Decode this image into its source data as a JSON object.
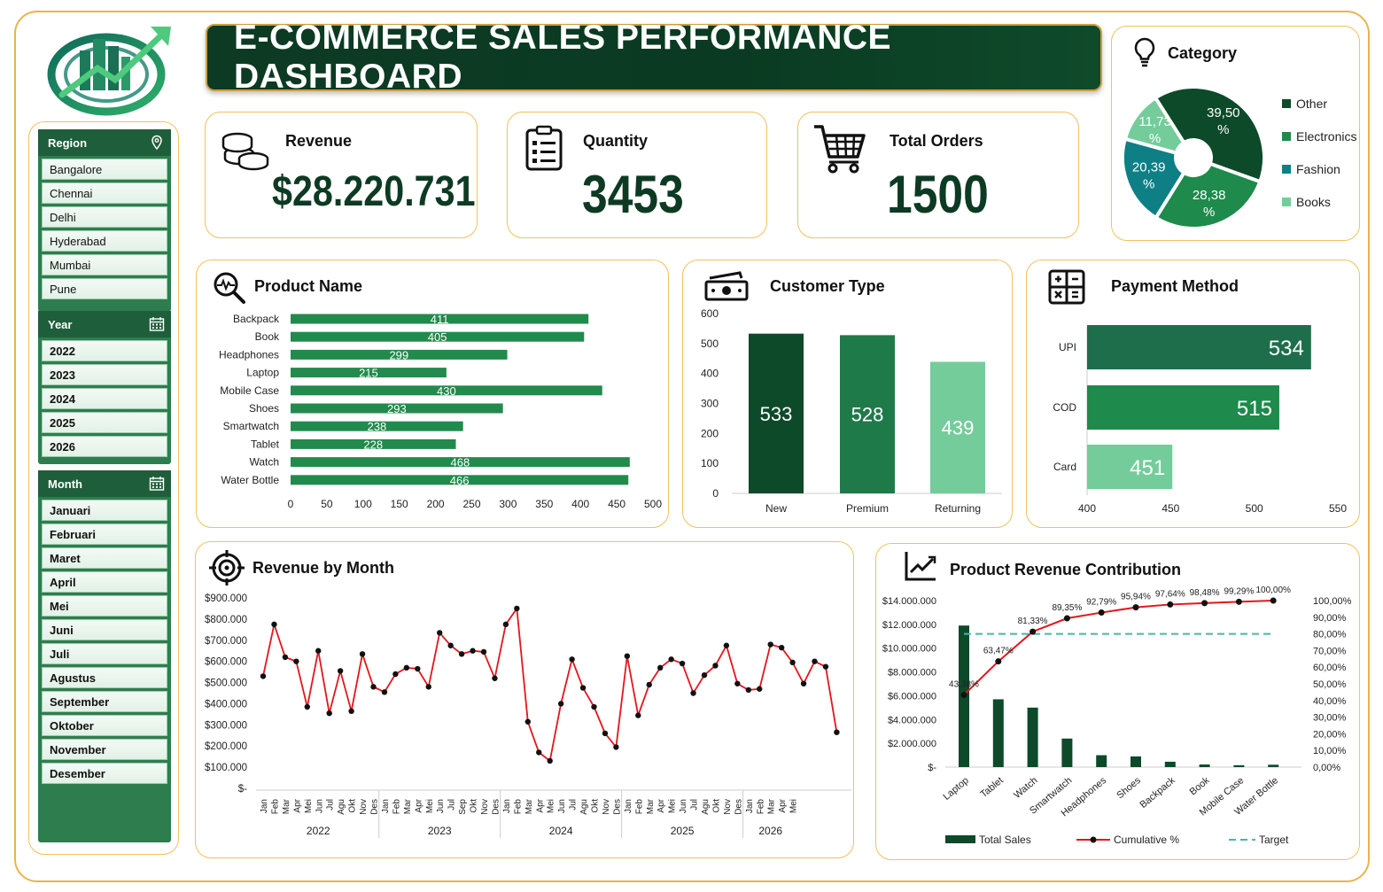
{
  "title": "E-COMMERCE SALES PERFORMANCE DASHBOARD",
  "colors": {
    "dark_green": "#0d4a2a",
    "mid_green": "#1e8a4c",
    "teal": "#0f7f86",
    "light_green": "#74cc9a",
    "red": "#e5151b",
    "target": "#46b8a8",
    "border": "#f0c25c"
  },
  "slicers": {
    "region": {
      "label": "Region",
      "icon": "map-pin-icon",
      "items": [
        "Bangalore",
        "Chennai",
        "Delhi",
        "Hyderabad",
        "Mumbai",
        "Pune"
      ]
    },
    "year": {
      "label": "Year",
      "icon": "calendar-icon",
      "items": [
        "2022",
        "2023",
        "2024",
        "2025",
        "2026"
      ]
    },
    "month": {
      "label": "Month",
      "icon": "calendar-icon",
      "items": [
        "Januari",
        "Februari",
        "Maret",
        "April",
        "Mei",
        "Juni",
        "Juli",
        "Agustus",
        "September",
        "Oktober",
        "November",
        "Desember"
      ]
    }
  },
  "kpis": {
    "revenue": {
      "label": "Revenue",
      "value": "$28.220.731",
      "icon": "coins-icon"
    },
    "quantity": {
      "label": "Quantity",
      "value": "3453",
      "icon": "clipboard-icon"
    },
    "orders": {
      "label": "Total Orders",
      "value": "1500",
      "icon": "shopping-cart-icon"
    }
  },
  "chart_data": [
    {
      "id": "category",
      "type": "pie",
      "title": "Category",
      "icon": "lightbulb-icon",
      "donut": true,
      "slices": [
        {
          "name": "Other",
          "value": 39.5,
          "label": "39,50 %"
        },
        {
          "name": "Electronics",
          "value": 28.38,
          "label": "28,38 %"
        },
        {
          "name": "Fashion",
          "value": 20.39,
          "label": "20,39 %"
        },
        {
          "name": "Books",
          "value": 11.73,
          "label": "11,73 %"
        }
      ],
      "legend": "right"
    },
    {
      "id": "product_name",
      "type": "bar",
      "orientation": "horizontal",
      "title": "Product Name",
      "icon": "magnifier-pulse-icon",
      "categories": [
        "Backpack",
        "Book",
        "Headphones",
        "Laptop",
        "Mobile Case",
        "Shoes",
        "Smartwatch",
        "Tablet",
        "Watch",
        "Water Bottle"
      ],
      "values": [
        411,
        405,
        299,
        215,
        430,
        293,
        238,
        228,
        468,
        466
      ],
      "xlim": [
        0,
        500
      ],
      "xticks": [
        "0",
        "50",
        "100",
        "150",
        "200",
        "250",
        "300",
        "350",
        "400",
        "450",
        "500"
      ]
    },
    {
      "id": "customer_type",
      "type": "bar",
      "title": "Customer Type",
      "icon": "cash-icon",
      "categories": [
        "New",
        "Premium",
        "Returning"
      ],
      "values": [
        533,
        528,
        439
      ],
      "ylim": [
        0,
        600
      ],
      "yticks": [
        "0",
        "100",
        "200",
        "300",
        "400",
        "500",
        "600"
      ]
    },
    {
      "id": "payment_method",
      "type": "bar",
      "orientation": "horizontal",
      "title": "Payment Method",
      "icon": "calculator-icon",
      "categories": [
        "UPI",
        "COD",
        "Card"
      ],
      "values": [
        534,
        515,
        451
      ],
      "xlim": [
        400,
        550
      ],
      "xticks": [
        "400",
        "450",
        "500",
        "550"
      ]
    },
    {
      "id": "revenue_by_month",
      "type": "line",
      "title": "Revenue by Month",
      "icon": "target-icon",
      "ylim": [
        0,
        900000
      ],
      "yticks": [
        "$-",
        "$100.000",
        "$200.000",
        "$300.000",
        "$400.000",
        "$500.000",
        "$600.000",
        "$700.000",
        "$800.000",
        "$900.000"
      ],
      "years": [
        {
          "label": "2022",
          "months": [
            "Jan",
            "Feb",
            "Mar",
            "Apr",
            "Mei",
            "Jun",
            "Jul",
            "Agu",
            "Okt",
            "Nov",
            "Des"
          ]
        },
        {
          "label": "2023",
          "months": [
            "Jan",
            "Feb",
            "Mar",
            "Apr",
            "Mei",
            "Jun",
            "Jul",
            "Sep",
            "Okt",
            "Nov",
            "Des"
          ]
        },
        {
          "label": "2024",
          "months": [
            "Jan",
            "Feb",
            "Mar",
            "Apr",
            "Mei",
            "Jun",
            "Jul",
            "Agu",
            "Okt",
            "Nov",
            "Des"
          ]
        },
        {
          "label": "2025",
          "months": [
            "Jan",
            "Feb",
            "Mar",
            "Apr",
            "Mei",
            "Jun",
            "Jul",
            "Agu",
            "Okt",
            "Nov",
            "Des"
          ]
        },
        {
          "label": "2026",
          "months": [
            "Jan",
            "Feb",
            "Mar",
            "Apr",
            "Mei"
          ]
        }
      ],
      "values": [
        530000,
        775000,
        620000,
        600000,
        385000,
        650000,
        355000,
        555000,
        365000,
        635000,
        480000,
        455000,
        540000,
        570000,
        565000,
        480000,
        735000,
        675000,
        635000,
        650000,
        645000,
        520000,
        775000,
        850000,
        315000,
        170000,
        130000,
        400000,
        610000,
        475000,
        385000,
        260000,
        195000,
        625000,
        345000,
        490000,
        570000,
        610000,
        590000,
        450000,
        535000,
        580000,
        675000,
        495000,
        465000,
        470000,
        680000,
        665000,
        595000,
        495000,
        600000,
        575000,
        265000
      ]
    },
    {
      "id": "product_revenue_contribution",
      "type": "bar",
      "title": "Product Revenue Contribution",
      "icon": "line-trend-icon",
      "categories": [
        "Laptop",
        "Tablet",
        "Watch",
        "Smartwatch",
        "Headphones",
        "Shoes",
        "Backpack",
        "Book",
        "Mobile Case",
        "Water Bottle"
      ],
      "series": [
        {
          "name": "Total Sales",
          "type": "bar",
          "values": [
            11900000,
            5700000,
            5000000,
            2400000,
            1000000,
            900000,
            450000,
            220000,
            160000,
            200000
          ]
        },
        {
          "name": "Cumulative %",
          "type": "line",
          "values": [
            43.38,
            63.47,
            81.33,
            89.35,
            92.79,
            95.94,
            97.64,
            98.48,
            99.29,
            100.0
          ],
          "labels": [
            "43,38%",
            "63,47%",
            "81,33%",
            "89,35%",
            "92,79%",
            "95,94%",
            "97,64%",
            "98,48%",
            "99,29%",
            "100,00%"
          ]
        },
        {
          "name": "Target",
          "type": "line",
          "values": [
            80,
            80,
            80,
            80,
            80,
            80,
            80,
            80,
            80,
            80
          ]
        }
      ],
      "ylim": [
        0,
        14000000
      ],
      "yticks": [
        "$-",
        "$2.000.000",
        "$4.000.000",
        "$6.000.000",
        "$8.000.000",
        "$10.000.000",
        "$12.000.000",
        "$14.000.000"
      ],
      "y2lim": [
        0,
        100
      ],
      "y2ticks": [
        "0,00%",
        "10,00%",
        "20,00%",
        "30,00%",
        "40,00%",
        "50,00%",
        "60,00%",
        "70,00%",
        "80,00%",
        "90,00%",
        "100,00%"
      ],
      "legend": "bottom"
    }
  ]
}
